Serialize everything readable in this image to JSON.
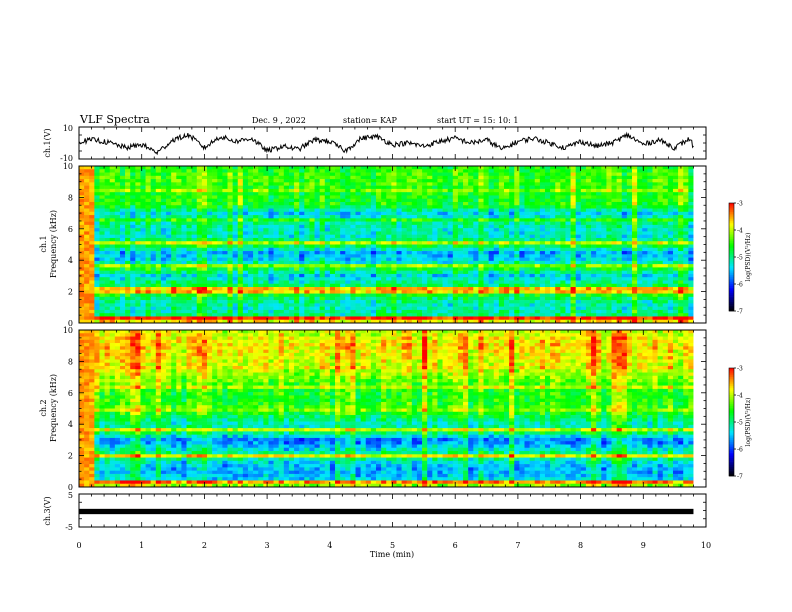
{
  "header": {
    "title": "VLF Spectra",
    "date": "Dec. 9 , 2022",
    "station": "station= KAP",
    "start": "start  UT =   15: 10: 1"
  },
  "colors": {
    "trace": "#000000",
    "colormap": [
      "#000000",
      "#0000ff",
      "#00e5ff",
      "#00ff00",
      "#ffff00",
      "#ff0000",
      "#ffffff"
    ]
  },
  "chart_data": [
    {
      "type": "line",
      "panel": "ch1-waveform",
      "ylabel": "ch.1(V)",
      "ylim": [
        -10,
        10
      ],
      "yticks": [
        "10",
        "-10"
      ],
      "xlim": [
        0,
        10
      ],
      "x_minutes": [
        0,
        0.25,
        0.5,
        0.75,
        1.0,
        1.25,
        1.5,
        1.75,
        2.0,
        2.25,
        2.5,
        2.75,
        3.0,
        3.25,
        3.5,
        3.75,
        4.0,
        4.25,
        4.5,
        4.75,
        5.0,
        5.25,
        5.5,
        5.75,
        6.0,
        6.25,
        6.5,
        6.75,
        7.0,
        7.25,
        7.5,
        7.75,
        8.0,
        8.25,
        8.5,
        8.75,
        9.0,
        9.25,
        9.5,
        9.75,
        9.8
      ],
      "values": [
        1,
        2,
        0,
        -3,
        -1,
        -6,
        2,
        5,
        -3,
        4,
        1,
        3,
        -5,
        -2,
        -4,
        2,
        1,
        -5,
        3,
        4,
        -1,
        0,
        -2,
        1,
        3,
        0,
        2,
        -4,
        1,
        3,
        0,
        -3,
        1,
        -2,
        0,
        5,
        -1,
        2,
        -3,
        3,
        -3
      ]
    },
    {
      "type": "heatmap",
      "panel": "ch1-spectrogram",
      "ylabel": "ch.1",
      "ylabel2": "Frequency  (kHz)",
      "ylim": [
        0,
        10
      ],
      "yticks": [
        "0",
        "2",
        "4",
        "6",
        "8",
        "10"
      ],
      "xlim": [
        0,
        9.8
      ],
      "colorbar": {
        "label": "log(PSD)(V²/Hz)",
        "range": [
          -7,
          -3
        ],
        "ticks": [
          "-3",
          "-4",
          "-5",
          "-6",
          "-7"
        ]
      },
      "freq_kHz": [
        0.0,
        0.5,
        1.0,
        1.5,
        2.0,
        2.5,
        3.0,
        3.5,
        4.0,
        4.5,
        5.0,
        5.5,
        6.0,
        6.5,
        7.0,
        7.5,
        8.0,
        8.5,
        9.0,
        9.5,
        10.0
      ],
      "mean_log_psd": [
        -3.4,
        -5.0,
        -5.2,
        -5.0,
        -4.4,
        -5.0,
        -5.4,
        -4.6,
        -5.4,
        -5.6,
        -4.6,
        -5.2,
        -5.2,
        -5.0,
        -5.4,
        -4.6,
        -4.6,
        -4.6,
        -4.4,
        -4.5,
        -4.6
      ],
      "bands": [
        {
          "freq_kHz": 0.3,
          "log_psd": -3.0
        },
        {
          "freq_kHz": 2.1,
          "log_psd": -3.6
        },
        {
          "freq_kHz": 3.6,
          "log_psd": -4.2
        },
        {
          "freq_kHz": 5.1,
          "log_psd": -4.0
        },
        {
          "freq_kHz": 6.6,
          "log_psd": -4.6
        },
        {
          "freq_kHz": 8.4,
          "log_psd": -4.2
        }
      ]
    },
    {
      "type": "heatmap",
      "panel": "ch2-spectrogram",
      "ylabel": "ch.2",
      "ylabel2": "Frequency  (kHz)",
      "ylim": [
        0,
        10
      ],
      "yticks": [
        "0",
        "2",
        "4",
        "6",
        "8",
        "10"
      ],
      "xlim": [
        0,
        9.8
      ],
      "colorbar": {
        "label": "log(PSD)(V²/Hz)",
        "range": [
          -7,
          -3
        ],
        "ticks": [
          "-3",
          "-4",
          "-5",
          "-6",
          "-7"
        ]
      },
      "freq_kHz": [
        0.0,
        0.5,
        1.0,
        1.5,
        2.0,
        2.5,
        3.0,
        3.5,
        4.0,
        4.5,
        5.0,
        5.5,
        6.0,
        6.5,
        7.0,
        7.5,
        8.0,
        8.5,
        9.0,
        9.5,
        10.0
      ],
      "mean_log_psd": [
        -3.8,
        -5.4,
        -5.6,
        -5.4,
        -4.8,
        -5.4,
        -5.8,
        -4.8,
        -5.2,
        -4.8,
        -4.4,
        -4.6,
        -4.6,
        -4.4,
        -4.2,
        -4.0,
        -3.9,
        -3.8,
        -3.7,
        -3.8,
        -4.0
      ],
      "bands": [
        {
          "freq_kHz": 0.3,
          "log_psd": -3.4
        },
        {
          "freq_kHz": 2.0,
          "log_psd": -3.8
        },
        {
          "freq_kHz": 3.6,
          "log_psd": -4.0
        },
        {
          "freq_kHz": 4.9,
          "log_psd": -4.2
        },
        {
          "freq_kHz": 6.3,
          "log_psd": -4.0
        },
        {
          "freq_kHz": 7.6,
          "log_psd": -3.8
        }
      ]
    },
    {
      "type": "line",
      "panel": "ch3-waveform",
      "ylabel": "ch.3(V)",
      "ylim": [
        -5,
        5
      ],
      "yticks": [
        "5",
        "-5"
      ],
      "xlim": [
        0,
        10
      ],
      "x_minutes": [
        0,
        9.8
      ],
      "values": [
        0,
        0
      ],
      "band_halfwidth_V": 0.5
    }
  ],
  "xaxis": {
    "label": "Time  (min)",
    "ticks": [
      "0",
      "1",
      "2",
      "3",
      "4",
      "5",
      "6",
      "7",
      "8",
      "9",
      "10"
    ]
  }
}
